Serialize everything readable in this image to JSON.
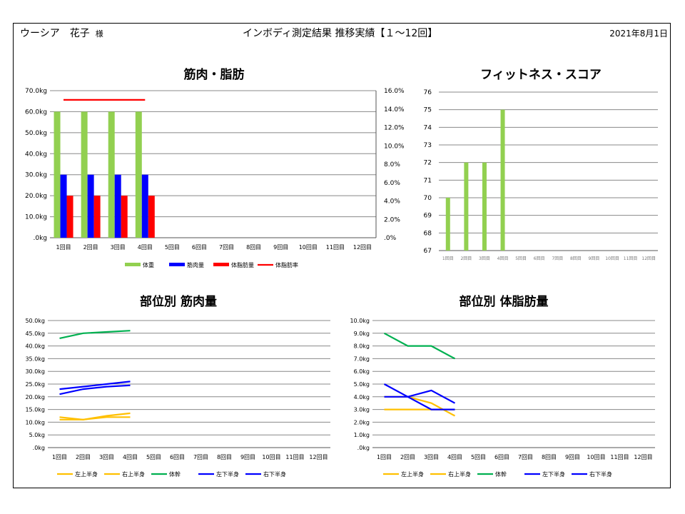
{
  "header": {
    "name": "ウーシア　花子",
    "honorific": "様",
    "title": "インボディ測定結果 推移実績【１～12回】",
    "date": "2021年8月1日"
  },
  "colors": {
    "weight": "#92d050",
    "muscle": "#0000ff",
    "bodyfat": "#ff0000",
    "fatpct": "#ff0000",
    "fitness": "#92d050",
    "yellow": "#ffc000",
    "green": "#00b050",
    "blue": "#0000ff"
  },
  "chart_data": [
    {
      "id": "muscle_fat",
      "type": "bar",
      "title": "筋肉・脂肪",
      "categories": [
        "1回目",
        "2回目",
        "3回目",
        "4回目",
        "5回目",
        "6回目",
        "7回目",
        "8回目",
        "9回目",
        "10回目",
        "11回目",
        "12回目"
      ],
      "y_ticks": [
        ".0kg",
        "10.0kg",
        "20.0kg",
        "30.0kg",
        "40.0kg",
        "50.0kg",
        "60.0kg",
        "70.0kg"
      ],
      "ylim": [
        0,
        70
      ],
      "y2_ticks": [
        ".0%",
        "2.0%",
        "4.0%",
        "6.0%",
        "8.0%",
        "10.0%",
        "12.0%",
        "14.0%",
        "16.0%"
      ],
      "y2lim": [
        0,
        16
      ],
      "series": [
        {
          "name": "体重",
          "kind": "bar",
          "axis": "left",
          "color_key": "weight",
          "values": [
            60,
            60,
            60,
            60,
            null,
            null,
            null,
            null,
            null,
            null,
            null,
            null
          ]
        },
        {
          "name": "筋肉量",
          "kind": "bar",
          "axis": "left",
          "color_key": "muscle",
          "values": [
            30,
            30,
            30,
            30,
            null,
            null,
            null,
            null,
            null,
            null,
            null,
            null
          ]
        },
        {
          "name": "体脂肪量",
          "kind": "bar",
          "axis": "left",
          "color_key": "bodyfat",
          "values": [
            20,
            20,
            20,
            20,
            null,
            null,
            null,
            null,
            null,
            null,
            null,
            null
          ]
        },
        {
          "name": "体脂肪率",
          "kind": "line",
          "axis": "right",
          "color_key": "fatpct",
          "values": [
            15,
            15,
            15,
            15,
            null,
            null,
            null,
            null,
            null,
            null,
            null,
            null
          ]
        }
      ],
      "grid": true,
      "legend": "bottom"
    },
    {
      "id": "fitness",
      "type": "bar",
      "title": "フィットネス・スコア",
      "categories": [
        "1回目",
        "2回目",
        "3回目",
        "4回目",
        "5回目",
        "6回目",
        "7回目",
        "8回目",
        "9回目",
        "10回目",
        "11回目",
        "12回目"
      ],
      "y_ticks": [
        "67",
        "68",
        "69",
        "70",
        "71",
        "72",
        "73",
        "74",
        "75",
        "76"
      ],
      "ylim": [
        67,
        76
      ],
      "series": [
        {
          "name": "",
          "kind": "bar",
          "axis": "left",
          "color_key": "fitness",
          "values": [
            70,
            72,
            72,
            75,
            null,
            null,
            null,
            null,
            null,
            null,
            null,
            null
          ]
        }
      ],
      "grid": true
    },
    {
      "id": "seg_muscle",
      "type": "line",
      "title": "部位別 筋肉量",
      "categories": [
        "1回目",
        "2回目",
        "3回目",
        "4回目",
        "5回目",
        "6回目",
        "7回目",
        "8回目",
        "9回目",
        "10回目",
        "11回目",
        "12回目"
      ],
      "y_ticks": [
        ".0kg",
        "5.0kg",
        "10.0kg",
        "15.0kg",
        "20.0kg",
        "25.0kg",
        "30.0kg",
        "35.0kg",
        "40.0kg",
        "45.0kg",
        "50.0kg"
      ],
      "ylim": [
        0,
        50
      ],
      "series": [
        {
          "name": "左上半身",
          "color_key": "yellow",
          "values": [
            11,
            11,
            12,
            12,
            null,
            null,
            null,
            null,
            null,
            null,
            null,
            null
          ]
        },
        {
          "name": "右上半身",
          "color_key": "yellow",
          "values": [
            12,
            11,
            12.5,
            13.5,
            null,
            null,
            null,
            null,
            null,
            null,
            null,
            null
          ]
        },
        {
          "name": "体幹",
          "color_key": "green",
          "values": [
            43,
            45,
            45.5,
            46,
            null,
            null,
            null,
            null,
            null,
            null,
            null,
            null
          ]
        },
        {
          "name": "左下半身",
          "color_key": "blue",
          "values": [
            23,
            24,
            25,
            26,
            null,
            null,
            null,
            null,
            null,
            null,
            null,
            null
          ]
        },
        {
          "name": "右下半身",
          "color_key": "blue",
          "values": [
            21,
            23,
            24,
            24.5,
            null,
            null,
            null,
            null,
            null,
            null,
            null,
            null
          ]
        }
      ],
      "grid": true,
      "legend": "bottom"
    },
    {
      "id": "seg_fat",
      "type": "line",
      "title": "部位別 体脂肪量",
      "categories": [
        "1回目",
        "2回目",
        "3回目",
        "4回目",
        "5回目",
        "6回目",
        "7回目",
        "8回目",
        "9回目",
        "10回目",
        "11回目",
        "12回目"
      ],
      "y_ticks": [
        ".0kg",
        "1.0kg",
        "2.0kg",
        "3.0kg",
        "4.0kg",
        "5.0kg",
        "6.0kg",
        "7.0kg",
        "8.0kg",
        "9.0kg",
        "10.0kg"
      ],
      "ylim": [
        0,
        10
      ],
      "series": [
        {
          "name": "左上半身",
          "color_key": "yellow",
          "values": [
            3,
            3,
            3,
            3,
            null,
            null,
            null,
            null,
            null,
            null,
            null,
            null
          ]
        },
        {
          "name": "右上半身",
          "color_key": "yellow",
          "values": [
            4,
            4,
            3.5,
            2.5,
            null,
            null,
            null,
            null,
            null,
            null,
            null,
            null
          ]
        },
        {
          "name": "体幹",
          "color_key": "green",
          "values": [
            9,
            8,
            8,
            7,
            null,
            null,
            null,
            null,
            null,
            null,
            null,
            null
          ]
        },
        {
          "name": "左下半身",
          "color_key": "blue",
          "values": [
            5,
            4,
            3,
            3,
            null,
            null,
            null,
            null,
            null,
            null,
            null,
            null
          ]
        },
        {
          "name": "右下半身",
          "color_key": "blue",
          "values": [
            4,
            4,
            4.5,
            3.5,
            null,
            null,
            null,
            null,
            null,
            null,
            null,
            null
          ]
        }
      ],
      "grid": true,
      "legend": "bottom"
    }
  ]
}
